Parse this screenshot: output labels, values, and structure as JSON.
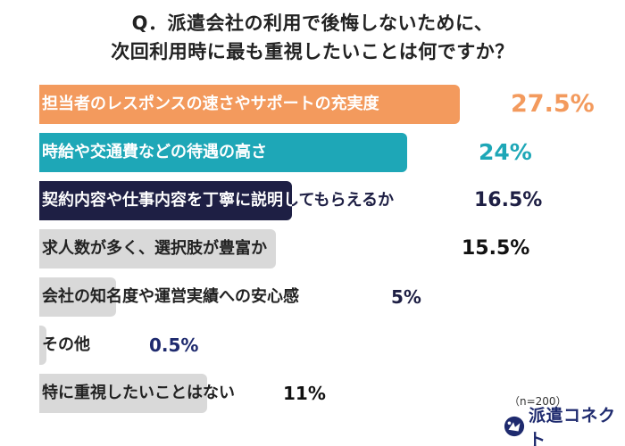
{
  "question": {
    "line1": "Q．派遣会社の利用で後悔しないために、",
    "line2": "次回利用時に最も重視したいことは何ですか？"
  },
  "chart_data": {
    "type": "bar",
    "orientation": "horizontal",
    "categories": [
      "担当者のレスポンスの速さやサポートの充実度",
      "時給や交通費などの待遇の高さ",
      "契約内容や仕事内容を丁寧に説明してもらえるか",
      "求人数が多く、選択肢が豊富か",
      "会社の知名度や運営実績への安心感",
      "その他",
      "特に重視したいことはない"
    ],
    "values": [
      27.5,
      24,
      16.5,
      15.5,
      5,
      0.5,
      11
    ],
    "value_labels": [
      "27.5%",
      "24%",
      "16.5%",
      "15.5%",
      "5%",
      "0.5%",
      "11%"
    ],
    "bar_colors": [
      "#f39a5d",
      "#1ea7b7",
      "#1e1f44",
      "#d9d9d9",
      "#d9d9d9",
      "#d9d9d9",
      "#d9d9d9"
    ],
    "value_colors": [
      "#f39a5d",
      "#1ea7b7",
      "#1e1f44",
      "#111111",
      "#1e1f44",
      "#1e2a6e",
      "#111111"
    ],
    "unit": "%"
  },
  "sample_note": "（n=200）",
  "logo": {
    "icon": "logo-mark-icon",
    "text": "派遣コネクト",
    "color": "#1e2a6e"
  }
}
